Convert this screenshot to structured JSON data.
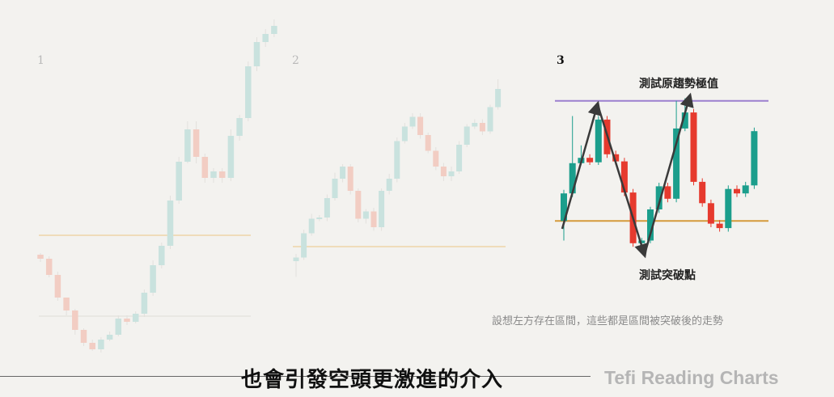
{
  "chart_data": [
    {
      "type": "candlestick",
      "panel_label": "1",
      "faded": true,
      "candles": [
        [
          0.35,
          0.3,
          0.26,
          0.37
        ],
        [
          0.3,
          0.1,
          0.07,
          0.33
        ],
        [
          0.1,
          -0.18,
          -0.22,
          0.14
        ],
        [
          -0.18,
          -0.34,
          -0.4,
          -0.24
        ],
        [
          -0.34,
          -0.58,
          -0.64,
          -0.32
        ],
        [
          -0.58,
          -0.74,
          -0.78,
          -0.56
        ],
        [
          -0.74,
          -0.82,
          -0.84,
          -0.7
        ],
        [
          -0.82,
          -0.7,
          -0.67,
          -0.86
        ],
        [
          -0.7,
          -0.64,
          -0.6,
          -0.72
        ],
        [
          -0.64,
          -0.44,
          -0.4,
          -0.66
        ],
        [
          -0.44,
          -0.48,
          -0.52,
          -0.4
        ],
        [
          -0.48,
          -0.38,
          -0.35,
          -0.5
        ],
        [
          -0.38,
          -0.12,
          -0.08,
          -0.42
        ],
        [
          -0.12,
          0.22,
          0.28,
          -0.16
        ],
        [
          0.22,
          0.46,
          0.5,
          0.18
        ],
        [
          0.46,
          1.02,
          1.08,
          0.42
        ],
        [
          1.02,
          1.5,
          1.56,
          0.98
        ],
        [
          1.5,
          1.9,
          2.0,
          1.48
        ],
        [
          1.9,
          1.56,
          1.48,
          2.0
        ],
        [
          1.56,
          1.3,
          1.24,
          1.6
        ],
        [
          1.3,
          1.38,
          1.42,
          1.24
        ],
        [
          1.38,
          1.3,
          1.24,
          1.42
        ],
        [
          1.3,
          1.82,
          1.9,
          1.26
        ],
        [
          1.82,
          2.04,
          2.08,
          1.76
        ],
        [
          2.04,
          2.68,
          2.74,
          2.0
        ],
        [
          2.68,
          2.98,
          3.04,
          2.62
        ],
        [
          2.98,
          3.08,
          3.14,
          2.92
        ],
        [
          3.08,
          3.18,
          3.26,
          3.04
        ]
      ],
      "levels": [
        -0.41,
        0.59
      ]
    },
    {
      "type": "candlestick",
      "panel_label": "2",
      "faded": true,
      "candles": [
        [
          -0.02,
          0.01,
          0.04,
          -0.15
        ],
        [
          0.01,
          0.21,
          0.24,
          -0.01
        ],
        [
          0.21,
          0.33,
          0.37,
          0.19
        ],
        [
          0.33,
          0.34,
          0.36,
          0.31
        ],
        [
          0.34,
          0.5,
          0.53,
          0.31
        ],
        [
          0.5,
          0.66,
          0.71,
          0.48
        ],
        [
          0.66,
          0.76,
          0.78,
          0.63
        ],
        [
          0.76,
          0.56,
          0.53,
          0.78
        ],
        [
          0.56,
          0.33,
          0.3,
          0.58
        ],
        [
          0.33,
          0.39,
          0.41,
          0.29
        ],
        [
          0.39,
          0.26,
          0.23,
          0.42
        ],
        [
          0.26,
          0.56,
          0.58,
          0.23
        ],
        [
          0.56,
          0.66,
          0.7,
          0.53
        ],
        [
          0.66,
          0.97,
          1.0,
          0.63
        ],
        [
          0.97,
          1.09,
          1.12,
          0.95
        ],
        [
          1.09,
          1.17,
          1.2,
          1.07
        ],
        [
          1.17,
          1.02,
          0.99,
          1.2
        ],
        [
          1.02,
          0.89,
          0.87,
          1.04
        ],
        [
          0.89,
          0.76,
          0.73,
          0.92
        ],
        [
          0.76,
          0.68,
          0.64,
          0.79
        ],
        [
          0.68,
          0.72,
          0.76,
          0.64
        ],
        [
          0.72,
          0.94,
          0.97,
          0.7
        ],
        [
          0.94,
          1.09,
          1.11,
          0.92
        ],
        [
          1.09,
          1.12,
          1.15,
          1.07
        ],
        [
          1.12,
          1.05,
          1.02,
          1.15
        ],
        [
          1.05,
          1.25,
          1.27,
          1.03
        ],
        [
          1.25,
          1.4,
          1.48,
          1.23
        ]
      ],
      "levels": [
        0.1
      ]
    },
    {
      "type": "candlestick",
      "panel_label": "3",
      "faded": false,
      "candles": [
        [
          0.27,
          0.58,
          0.62,
          0.05
        ],
        [
          0.58,
          0.92,
          1.45,
          0.54
        ],
        [
          0.92,
          0.98,
          1.12,
          0.9
        ],
        [
          0.98,
          0.93,
          0.9,
          1.02
        ],
        [
          0.93,
          1.41,
          1.45,
          0.9
        ],
        [
          1.41,
          1.02,
          0.98,
          1.45
        ],
        [
          1.02,
          0.94,
          0.9,
          1.06
        ],
        [
          0.94,
          0.59,
          0.55,
          0.98
        ],
        [
          0.59,
          0.02,
          -0.02,
          0.63
        ],
        [
          0.02,
          0.05,
          0.08,
          -0.02
        ],
        [
          0.05,
          0.4,
          0.43,
          0.02
        ],
        [
          0.4,
          0.66,
          0.7,
          0.36
        ],
        [
          0.66,
          0.52,
          0.48,
          0.7
        ],
        [
          0.52,
          1.31,
          1.62,
          0.48
        ],
        [
          1.31,
          1.49,
          1.65,
          1.28
        ],
        [
          1.49,
          0.71,
          0.67,
          1.53
        ],
        [
          0.71,
          0.47,
          0.43,
          0.75
        ],
        [
          0.47,
          0.24,
          0.2,
          0.51
        ],
        [
          0.24,
          0.19,
          0.15,
          0.28
        ],
        [
          0.19,
          0.63,
          0.67,
          0.15
        ],
        [
          0.63,
          0.58,
          0.54,
          0.67
        ],
        [
          0.58,
          0.67,
          0.71,
          0.54
        ],
        [
          0.67,
          1.28,
          1.32,
          0.63
        ]
      ],
      "levels": [
        0.27,
        1.62
      ],
      "annotations": {
        "top": "測試原趨勢極值",
        "bottom": "測試突破點"
      }
    }
  ],
  "note": "設想左方存在區間，這些都是區間被突破後的走勢",
  "subtitle": "也會引發空頭更激進的介入",
  "brand": "Tefi Reading Charts",
  "colors": {
    "background": "#f3f2ef",
    "up": "#1b9e8c",
    "down": "#e63a2e",
    "up_faded": "#c9e2de",
    "down_faded": "#f2cdc3",
    "resistance_level": "#9b7fcf",
    "support_level": "#d49a3a",
    "support_level_faded": "#efdcba",
    "lower_level_faded": "#e9e8e3",
    "arrow": "#3a3a3a"
  }
}
